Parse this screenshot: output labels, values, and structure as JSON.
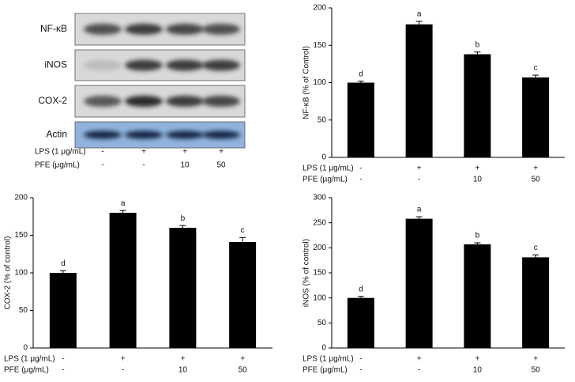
{
  "blot": {
    "proteins": [
      "NF-κB",
      "iNOS",
      "COX-2",
      "Actin"
    ],
    "row_labels": [
      "LPS (1 μg/mL)",
      "PFE (μg/mL)"
    ],
    "rows": [
      [
        "-",
        "+",
        "+",
        "+"
      ],
      [
        "-",
        "-",
        "10",
        "50"
      ]
    ]
  },
  "chart_data": [
    {
      "type": "bar",
      "ylabel": "NF-κB (% of Control)",
      "row_labels": [
        "LPS (1 μg/mL)",
        "PFE (µg/mL)"
      ],
      "rows": [
        [
          "-",
          "+",
          "+",
          "+"
        ],
        [
          "-",
          "-",
          "10",
          "50"
        ]
      ],
      "values": [
        100,
        178,
        138,
        107
      ],
      "errors": [
        2,
        4,
        3,
        3
      ],
      "annotations": [
        "d",
        "a",
        "b",
        "c"
      ],
      "color": "#000000",
      "ylim": [
        0,
        200
      ],
      "yticks": [
        0,
        50,
        100,
        150,
        200
      ]
    },
    {
      "type": "bar",
      "ylabel": "COX-2 (% of control)",
      "row_labels": [
        "LPS (1 μg/mL)",
        "PFE (μg/mL)"
      ],
      "rows": [
        [
          "-",
          "+",
          "+",
          "+"
        ],
        [
          "-",
          "-",
          "10",
          "50"
        ]
      ],
      "values": [
        100,
        180,
        160,
        141
      ],
      "errors": [
        3,
        3,
        3,
        6
      ],
      "annotations": [
        "d",
        "a",
        "b",
        "c"
      ],
      "color": "#000000",
      "ylim": [
        0,
        200
      ],
      "yticks": [
        0,
        50,
        100,
        150,
        200
      ]
    },
    {
      "type": "bar",
      "ylabel": "iNOS (% of control)",
      "row_labels": [
        "LPS (1 μg/mL)",
        "PFE (μg/mL)"
      ],
      "rows": [
        [
          "-",
          "+",
          "+",
          "+"
        ],
        [
          "-",
          "-",
          "10",
          "50"
        ]
      ],
      "values": [
        100,
        258,
        207,
        181
      ],
      "errors": [
        3,
        4,
        3,
        5
      ],
      "annotations": [
        "d",
        "a",
        "b",
        "c"
      ],
      "color": "#000000",
      "ylim": [
        0,
        300
      ],
      "yticks": [
        0,
        50,
        100,
        150,
        200,
        250,
        300
      ]
    }
  ]
}
